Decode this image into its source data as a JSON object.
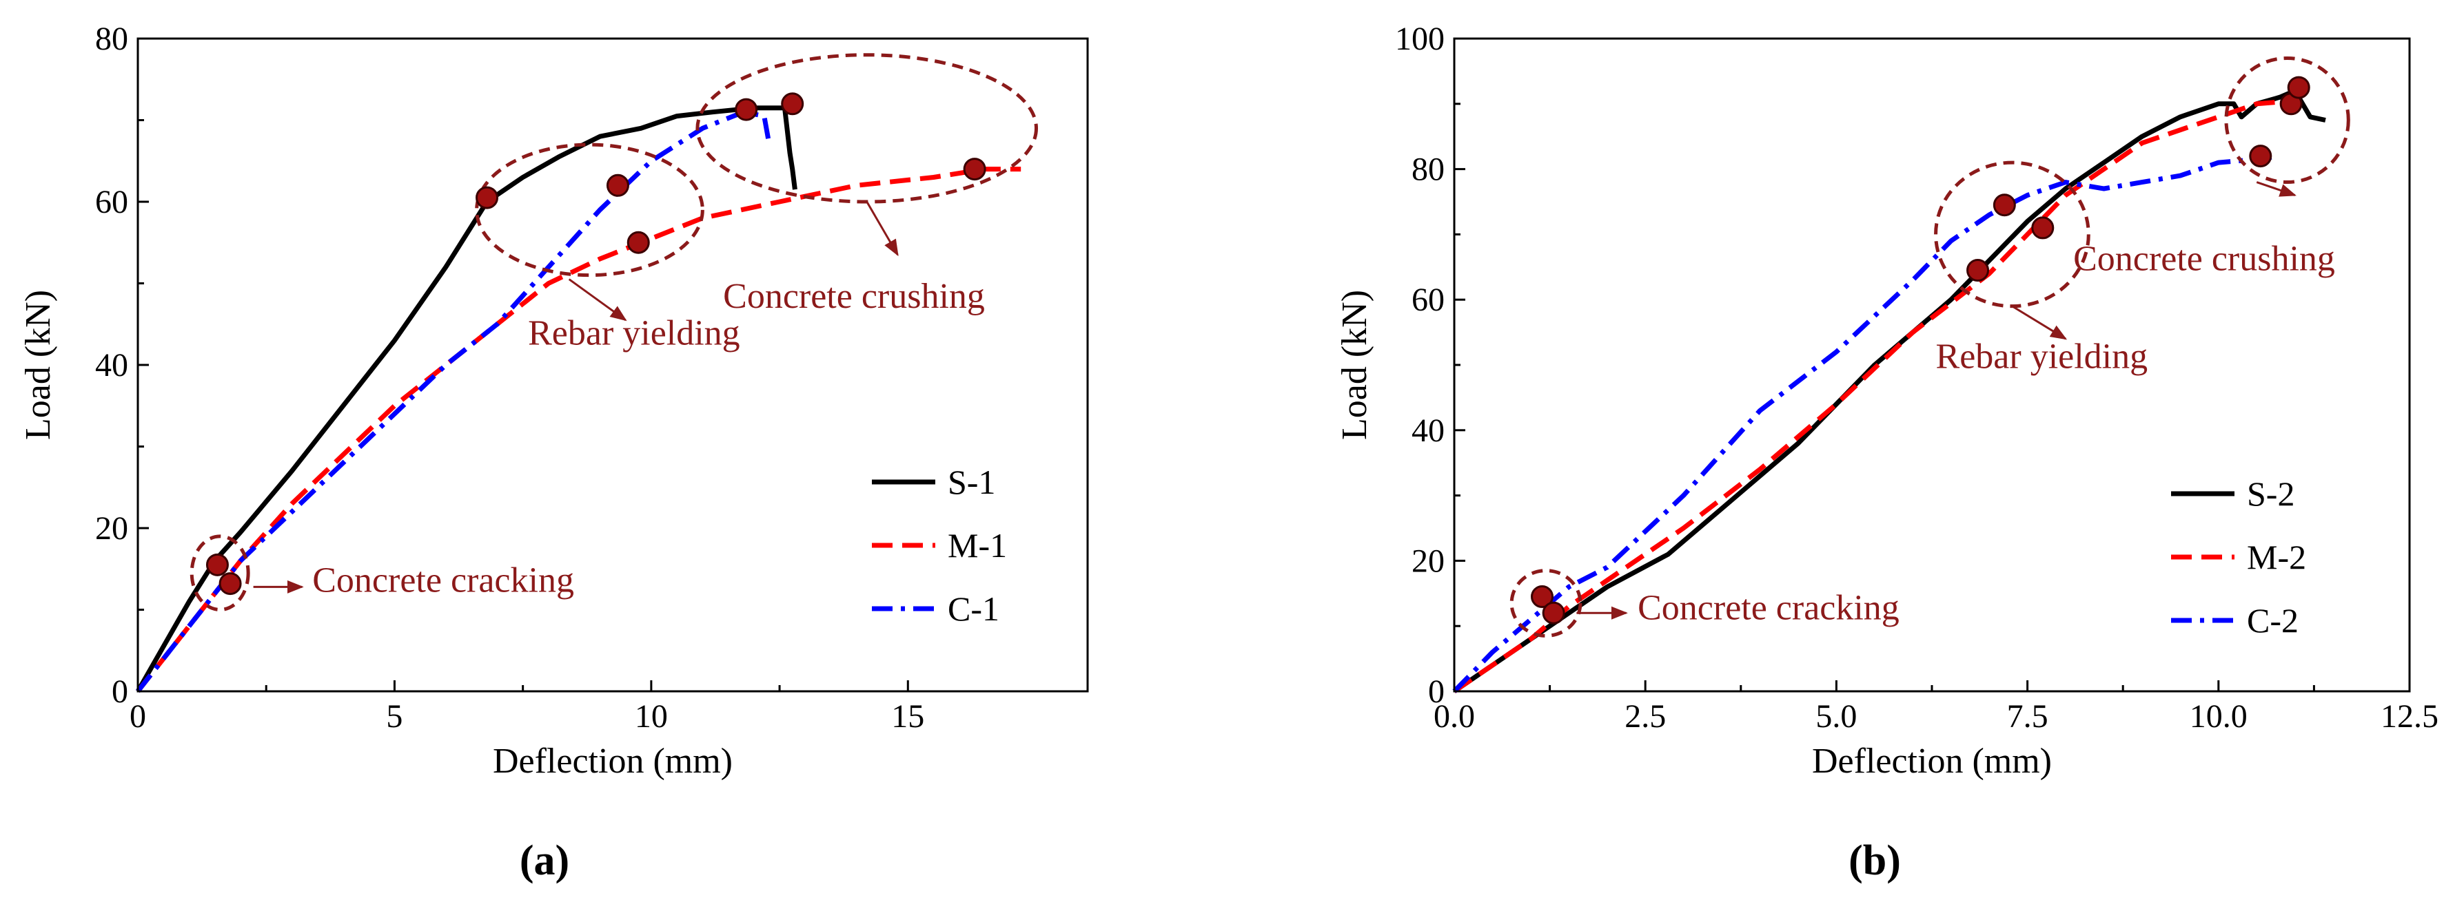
{
  "colors": {
    "S": "#000000",
    "M": "#ff0000",
    "C": "#0000ff",
    "annotation": "#8b1a1a",
    "marker": "#a01010",
    "axis": "#000000"
  },
  "chart_data": [
    {
      "type": "line",
      "panel_label": "(a)",
      "xlabel": "Deflection (mm)",
      "ylabel": "Load (kN)",
      "xlim": [
        0,
        18.5
      ],
      "ylim": [
        0,
        80
      ],
      "xticks": [
        0,
        5,
        10,
        15
      ],
      "xtick_labels": [
        "0",
        "5",
        "10",
        "15"
      ],
      "yticks": [
        0,
        20,
        40,
        60,
        80
      ],
      "ytick_labels": [
        "0",
        "20",
        "40",
        "60",
        "80"
      ],
      "legend_position": "bottom-right",
      "series": [
        {
          "name": "S-1",
          "style": "solid",
          "color_key": "S",
          "x": [
            0,
            0.5,
            1.0,
            1.5,
            2.0,
            3.0,
            4.0,
            5.0,
            6.0,
            6.8,
            7.5,
            8.2,
            9.0,
            9.8,
            10.5,
            11.2,
            12.0,
            12.6,
            12.7,
            12.75,
            12.8
          ],
          "y": [
            0,
            5.5,
            11,
            16,
            19.5,
            27,
            35,
            43,
            52,
            60,
            63,
            65.5,
            68,
            69,
            70.5,
            71,
            71.5,
            71.5,
            66,
            64,
            61.5
          ]
        },
        {
          "name": "M-1",
          "style": "dashed",
          "color_key": "M",
          "x": [
            0,
            0.5,
            1.0,
            1.5,
            2.0,
            3.0,
            4.0,
            5.0,
            6.0,
            7.0,
            8.0,
            9.0,
            9.8,
            11.0,
            12.5,
            14.0,
            15.5,
            16.5,
            17.2
          ],
          "y": [
            0,
            4,
            8,
            12,
            16,
            23,
            29,
            35,
            40,
            45,
            50,
            53,
            55,
            58,
            60,
            62,
            63,
            64,
            64
          ]
        },
        {
          "name": "C-1",
          "style": "dashdot",
          "color_key": "C",
          "x": [
            0,
            0.5,
            1.0,
            1.5,
            2.0,
            3.0,
            4.0,
            5.0,
            6.0,
            7.0,
            8.0,
            9.0,
            10.0,
            11.0,
            11.8,
            12.2,
            12.3
          ],
          "y": [
            0,
            4,
            8,
            12,
            16,
            22,
            28,
            34,
            40,
            45,
            52,
            59,
            65,
            69,
            71,
            70.5,
            67
          ]
        }
      ],
      "markers": [
        {
          "x": 1.55,
          "y": 15.5
        },
        {
          "x": 1.8,
          "y": 13.2
        },
        {
          "x": 6.8,
          "y": 60.5
        },
        {
          "x": 9.35,
          "y": 62
        },
        {
          "x": 9.75,
          "y": 55
        },
        {
          "x": 11.85,
          "y": 71.3
        },
        {
          "x": 12.75,
          "y": 72
        },
        {
          "x": 16.3,
          "y": 64
        }
      ],
      "ellipses": [
        {
          "name": "cracking",
          "cx": 1.6,
          "cy": 14.5,
          "rx": 0.55,
          "ry": 4.5
        },
        {
          "name": "yielding",
          "cx": 8.8,
          "cy": 59,
          "rx": 2.2,
          "ry": 8
        },
        {
          "name": "crushing",
          "cx": 14.2,
          "cy": 69,
          "rx": 3.3,
          "ry": 9
        }
      ],
      "annotations": [
        {
          "name": "cracking",
          "text": "Concrete cracking",
          "label_x": 3.4,
          "label_y": 12.2,
          "arrow": [
            2.25,
            12.8,
            3.2,
            12.8
          ]
        },
        {
          "name": "yielding",
          "text": "Rebar yielding",
          "label_x": 7.6,
          "label_y": 42.5,
          "arrow": [
            8.4,
            50.5,
            9.5,
            45.5
          ]
        },
        {
          "name": "crushing",
          "text": "Concrete crushing",
          "label_x": 11.4,
          "label_y": 47,
          "arrow": [
            14.2,
            60,
            14.8,
            53.5
          ]
        }
      ]
    },
    {
      "type": "line",
      "panel_label": "(b)",
      "xlabel": "Deflection (mm)",
      "ylabel": "Load (kN)",
      "xlim": [
        0,
        12.5
      ],
      "ylim": [
        0,
        100
      ],
      "xticks": [
        0,
        2.5,
        5,
        7.5,
        10,
        12.5
      ],
      "xtick_labels": [
        "0.0",
        "2.5",
        "5.0",
        "7.5",
        "10.0",
        "12.5"
      ],
      "yticks": [
        0,
        20,
        40,
        60,
        80,
        100
      ],
      "ytick_labels": [
        "0",
        "20",
        "40",
        "60",
        "80",
        "100"
      ],
      "legend_position": "bottom-right",
      "series": [
        {
          "name": "S-2",
          "style": "solid",
          "color_key": "S",
          "x": [
            0,
            0.5,
            1.0,
            1.5,
            2.0,
            2.8,
            3.5,
            4.5,
            5.5,
            6.5,
            7.0,
            7.5,
            8.0,
            8.5,
            9.0,
            9.5,
            10.0,
            10.2,
            10.3,
            10.5,
            10.8,
            11.0,
            11.2,
            11.4
          ],
          "y": [
            0,
            4,
            8,
            12,
            16,
            21,
            28,
            38,
            50,
            60,
            66,
            72,
            77,
            81,
            85,
            88,
            90,
            90,
            88,
            90,
            91,
            92,
            88,
            87.5
          ]
        },
        {
          "name": "M-2",
          "style": "dashed",
          "color_key": "M",
          "x": [
            0,
            0.5,
            1.0,
            1.5,
            2.0,
            3.0,
            4.0,
            5.0,
            6.0,
            7.0,
            7.5,
            8.0,
            8.5,
            9.0,
            9.5,
            10.0,
            10.5,
            11.0
          ],
          "y": [
            0,
            4,
            8,
            13,
            17,
            25,
            34,
            44,
            55,
            64,
            70,
            76,
            80,
            84,
            86,
            88,
            90,
            90.5
          ]
        },
        {
          "name": "C-2",
          "style": "dashdot",
          "color_key": "C",
          "x": [
            0,
            0.5,
            1.0,
            1.5,
            2.0,
            3.0,
            4.0,
            5.0,
            6.0,
            6.5,
            7.0,
            7.5,
            8.0,
            8.5,
            9.0,
            9.5,
            10.0,
            10.5,
            10.8
          ],
          "y": [
            0,
            6,
            11,
            16,
            19,
            30,
            43,
            52,
            63,
            69,
            73,
            76,
            78,
            77,
            78,
            79,
            81,
            81.5,
            82
          ]
        }
      ],
      "markers": [
        {
          "x": 1.15,
          "y": 14.5
        },
        {
          "x": 1.3,
          "y": 12
        },
        {
          "x": 6.85,
          "y": 64.5
        },
        {
          "x": 7.2,
          "y": 74.5
        },
        {
          "x": 7.7,
          "y": 71
        },
        {
          "x": 10.55,
          "y": 82
        },
        {
          "x": 10.95,
          "y": 90
        },
        {
          "x": 11.05,
          "y": 92.5
        }
      ],
      "ellipses": [
        {
          "name": "cracking",
          "cx": 1.2,
          "cy": 13.5,
          "rx": 0.45,
          "ry": 5
        },
        {
          "name": "yielding",
          "cx": 7.3,
          "cy": 70,
          "rx": 1.0,
          "ry": 11
        },
        {
          "name": "crushing",
          "cx": 10.9,
          "cy": 87.5,
          "rx": 0.8,
          "ry": 9.5
        }
      ],
      "annotations": [
        {
          "name": "cracking",
          "text": "Concrete cracking",
          "label_x": 2.4,
          "label_y": 11,
          "arrow": [
            1.6,
            12,
            2.25,
            12
          ]
        },
        {
          "name": "yielding",
          "text": "Rebar yielding",
          "label_x": 6.3,
          "label_y": 49.5,
          "arrow": [
            7.3,
            59,
            8.0,
            54
          ]
        },
        {
          "name": "crushing",
          "text": "Concrete crushing",
          "label_x": 8.1,
          "label_y": 64.5,
          "arrow": [
            10.5,
            78,
            11.0,
            76
          ]
        }
      ]
    }
  ]
}
